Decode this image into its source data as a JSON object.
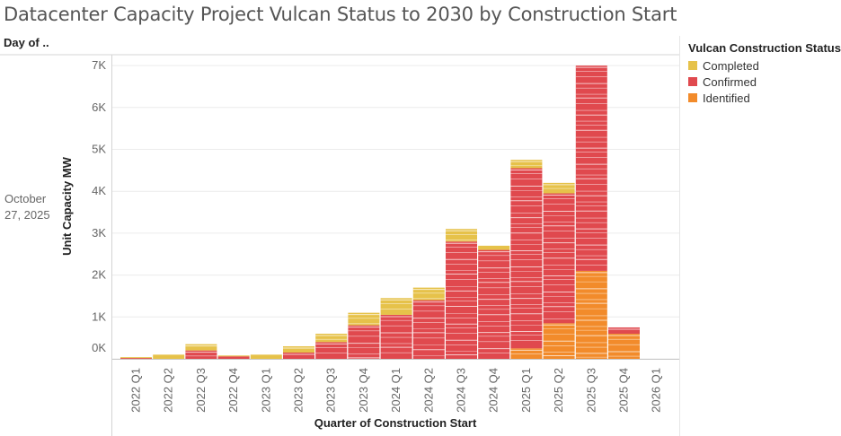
{
  "header": {
    "title": "Datacenter Capacity Project Vulcan Status to 2030 by Construction Start"
  },
  "rows": {
    "header": "Day of ..",
    "value": "October 27, 2025"
  },
  "legend": {
    "title": "Vulcan Construction Status",
    "items": [
      {
        "label": "Completed",
        "color": "#e6c24a"
      },
      {
        "label": "Confirmed",
        "color": "#e0494e"
      },
      {
        "label": "Identified",
        "color": "#f28b2b"
      }
    ]
  },
  "chart_data": {
    "type": "bar",
    "stacked": true,
    "xlabel": "Quarter of Construction Start",
    "ylabel": "Unit Capacity MW",
    "ylim": [
      -200,
      7000
    ],
    "yticks": [
      0,
      1000,
      2000,
      3000,
      4000,
      5000,
      6000,
      7000
    ],
    "ytick_labels": [
      "0K",
      "1K",
      "2K",
      "3K",
      "4K",
      "5K",
      "6K",
      "7K"
    ],
    "categories": [
      "2022 Q1",
      "2022 Q2",
      "2022 Q3",
      "2022 Q4",
      "2023 Q1",
      "2023 Q2",
      "2023 Q3",
      "2023 Q4",
      "2024 Q1",
      "2024 Q2",
      "2024 Q3",
      "2024 Q4",
      "2025 Q1",
      "2025 Q2",
      "2025 Q3",
      "2025 Q4",
      "2026 Q1"
    ],
    "series": [
      {
        "name": "Identified",
        "color": "#f28b2b",
        "values": [
          0,
          0,
          0,
          0,
          0,
          0,
          0,
          0,
          0,
          0,
          0,
          0,
          250,
          850,
          2100,
          600,
          0
        ]
      },
      {
        "name": "Confirmed",
        "color": "#e0494e",
        "values": [
          20,
          0,
          200,
          60,
          0,
          150,
          400,
          800,
          1050,
          1400,
          2800,
          2600,
          4300,
          3100,
          4900,
          150,
          0
        ]
      },
      {
        "name": "Completed",
        "color": "#e6c24a",
        "values": [
          20,
          100,
          150,
          20,
          100,
          150,
          200,
          300,
          400,
          300,
          300,
          100,
          200,
          250,
          0,
          0,
          0
        ]
      }
    ]
  }
}
